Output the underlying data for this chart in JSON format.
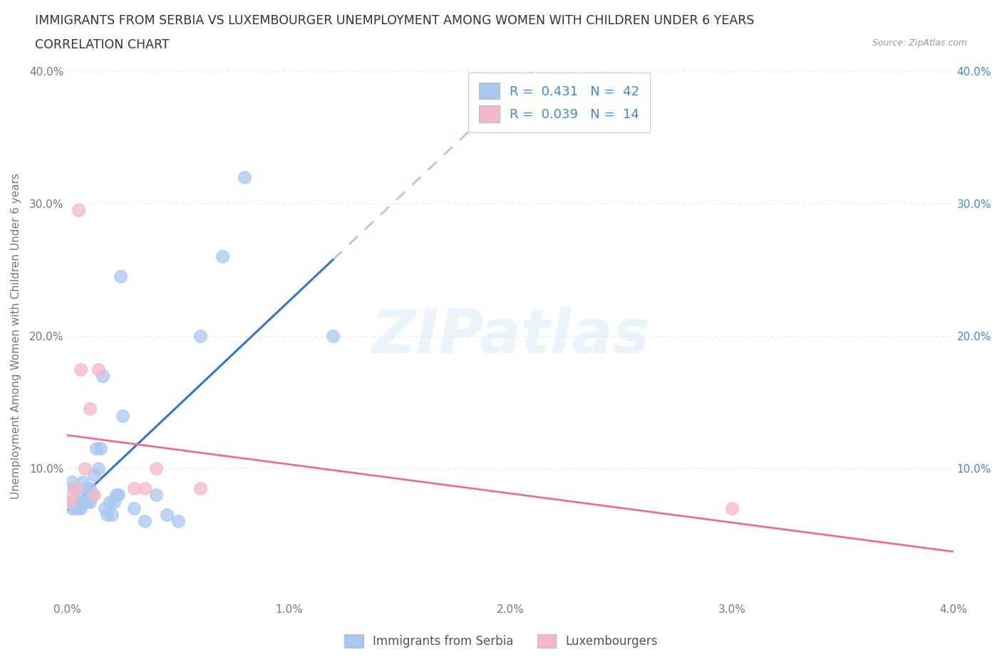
{
  "title_line1": "IMMIGRANTS FROM SERBIA VS LUXEMBOURGER UNEMPLOYMENT AMONG WOMEN WITH CHILDREN UNDER 6 YEARS",
  "title_line2": "CORRELATION CHART",
  "source": "Source: ZipAtlas.com",
  "ylabel": "Unemployment Among Women with Children Under 6 years",
  "r_serbia": 0.431,
  "n_serbia": 42,
  "r_lux": 0.039,
  "n_lux": 14,
  "serbia_color": "#a8c8f0",
  "lux_color": "#f5b8c8",
  "serbia_line_color": "#3575c8",
  "lux_line_color": "#e87090",
  "dashed_line_color": "#b0c8e8",
  "watermark_text": "ZIPatlas",
  "serbia_x": [
    0.0001,
    0.0002,
    0.0002,
    0.0003,
    0.0003,
    0.0004,
    0.0004,
    0.0005,
    0.0005,
    0.0006,
    0.0006,
    0.0007,
    0.0007,
    0.0008,
    0.0009,
    0.0009,
    0.001,
    0.001,
    0.0011,
    0.0012,
    0.0013,
    0.0014,
    0.0015,
    0.0016,
    0.0017,
    0.0018,
    0.0019,
    0.002,
    0.0021,
    0.0022,
    0.0023,
    0.0024,
    0.0025,
    0.003,
    0.0035,
    0.004,
    0.0045,
    0.005,
    0.006,
    0.007,
    0.008,
    0.012
  ],
  "serbia_y": [
    0.075,
    0.07,
    0.09,
    0.075,
    0.085,
    0.07,
    0.085,
    0.07,
    0.075,
    0.07,
    0.08,
    0.075,
    0.09,
    0.075,
    0.075,
    0.085,
    0.075,
    0.085,
    0.08,
    0.095,
    0.115,
    0.1,
    0.115,
    0.17,
    0.07,
    0.065,
    0.075,
    0.065,
    0.075,
    0.08,
    0.08,
    0.245,
    0.14,
    0.07,
    0.06,
    0.08,
    0.065,
    0.06,
    0.2,
    0.26,
    0.32,
    0.2
  ],
  "lux_x": [
    0.0001,
    0.0002,
    0.0004,
    0.0005,
    0.0006,
    0.0008,
    0.001,
    0.0012,
    0.0014,
    0.003,
    0.0035,
    0.004,
    0.006,
    0.03
  ],
  "lux_y": [
    0.075,
    0.08,
    0.085,
    0.295,
    0.175,
    0.1,
    0.145,
    0.08,
    0.175,
    0.085,
    0.085,
    0.1,
    0.085,
    0.07
  ],
  "xlim": [
    0.0,
    0.04
  ],
  "ylim": [
    0.0,
    0.4
  ],
  "xticks": [
    0.0,
    0.01,
    0.02,
    0.03,
    0.04
  ],
  "xtick_labels": [
    "0.0%",
    "1.0%",
    "2.0%",
    "3.0%",
    "4.0%"
  ],
  "yticks": [
    0.0,
    0.1,
    0.2,
    0.3,
    0.4
  ],
  "ytick_labels_left": [
    "",
    "10.0%",
    "20.0%",
    "30.0%",
    "40.0%"
  ],
  "ytick_labels_right": [
    "",
    "10.0%",
    "20.0%",
    "30.0%",
    "40.0%"
  ],
  "legend_bottom": [
    "Immigrants from Serbia",
    "Luxembourgers"
  ],
  "background_color": "#ffffff",
  "grid_color": "#e8e8e8",
  "title_color": "#333333",
  "tick_color": "#777777",
  "right_tick_color": "#4488cc"
}
